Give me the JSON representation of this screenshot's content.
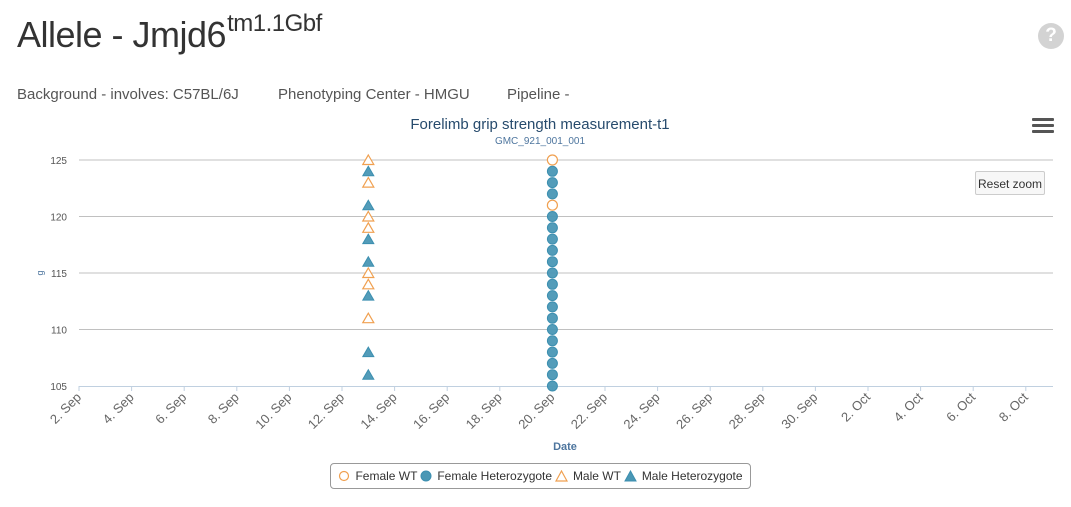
{
  "header": {
    "title_prefix": "Allele - Jmjd6",
    "title_sup": "tm1.1Gbf",
    "help_icon": "question-circle-icon",
    "background": "Background - involves: C57BL/6J",
    "center": "Phenotyping Center - HMGU",
    "pipeline": "Pipeline -"
  },
  "toolbar": {
    "menu_icon": "hamburger-menu-icon",
    "reset_zoom_label": "Reset zoom"
  },
  "chart_data": {
    "type": "scatter",
    "title": "Forelimb grip strength measurement-t1",
    "subtitle": "GMC_921_001_001",
    "xlabel": "Date",
    "ylabel": "g",
    "ylim": [
      105,
      125
    ],
    "yticks": [
      105,
      110,
      115,
      120,
      125
    ],
    "xticks": [
      "2. Sep",
      "4. Sep",
      "6. Sep",
      "8. Sep",
      "10. Sep",
      "12. Sep",
      "14. Sep",
      "16. Sep",
      "18. Sep",
      "20. Sep",
      "22. Sep",
      "24. Sep",
      "26. Sep",
      "28. Sep",
      "30. Sep",
      "2. Oct",
      "4. Oct",
      "6. Oct",
      "8. Oct"
    ],
    "grid": true,
    "colors": {
      "wt": "#f0a050",
      "het": "#3c8fb0",
      "het_fill": "#4a97b5"
    },
    "series": [
      {
        "name": "Female WT",
        "marker": "circle",
        "date": "20. Sep",
        "values": [
          125,
          121
        ]
      },
      {
        "name": "Female Heterozygote",
        "marker": "circle",
        "date": "20. Sep",
        "values": [
          124,
          123,
          122,
          120,
          119,
          118,
          117,
          116,
          115,
          114,
          113,
          112,
          111,
          110,
          109,
          108,
          107,
          106,
          105
        ]
      },
      {
        "name": "Male WT",
        "marker": "triangle",
        "date": "13. Sep",
        "values": [
          125,
          123,
          120,
          119,
          115,
          114,
          111
        ]
      },
      {
        "name": "Male Heterozygote",
        "marker": "triangle",
        "date": "13. Sep",
        "values": [
          124,
          121,
          118,
          116,
          113,
          108,
          106
        ]
      }
    ]
  }
}
